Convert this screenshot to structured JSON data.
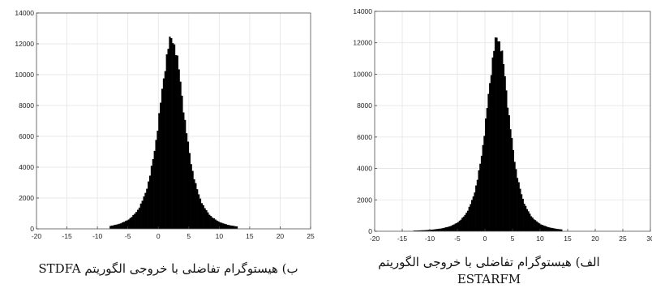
{
  "chart_data": [
    {
      "type": "bar",
      "caption": "ب) هیستوگرام تفاضلی با خروجی الگوریتم STDFA",
      "xlim": [
        -20,
        25
      ],
      "ylim": [
        0,
        14000
      ],
      "xticks": [
        -20,
        -15,
        -10,
        -5,
        0,
        5,
        10,
        15,
        20,
        25
      ],
      "yticks": [
        0,
        2000,
        4000,
        6000,
        8000,
        10000,
        12000,
        14000
      ],
      "grid": true,
      "color": "#000000",
      "distribution": {
        "peak_x": 2.2,
        "peak_y": 12300,
        "spread": 2.2,
        "support": [
          -8,
          13
        ]
      }
    },
    {
      "type": "bar",
      "caption_line1": "الف) هیستوگرام تفاضلی با خروجی الگوریتم",
      "caption_line2": "ESTARFM",
      "xlim": [
        -20,
        30
      ],
      "ylim": [
        0,
        14000
      ],
      "xticks": [
        -20,
        -15,
        -10,
        -5,
        0,
        5,
        10,
        15,
        20,
        25,
        30
      ],
      "yticks": [
        0,
        2000,
        4000,
        6000,
        8000,
        10000,
        12000,
        14000
      ],
      "grid": true,
      "color": "#000000",
      "distribution": {
        "peak_x": 2.3,
        "peak_y": 12300,
        "spread": 2.2,
        "support": [
          -13,
          14
        ]
      }
    }
  ]
}
